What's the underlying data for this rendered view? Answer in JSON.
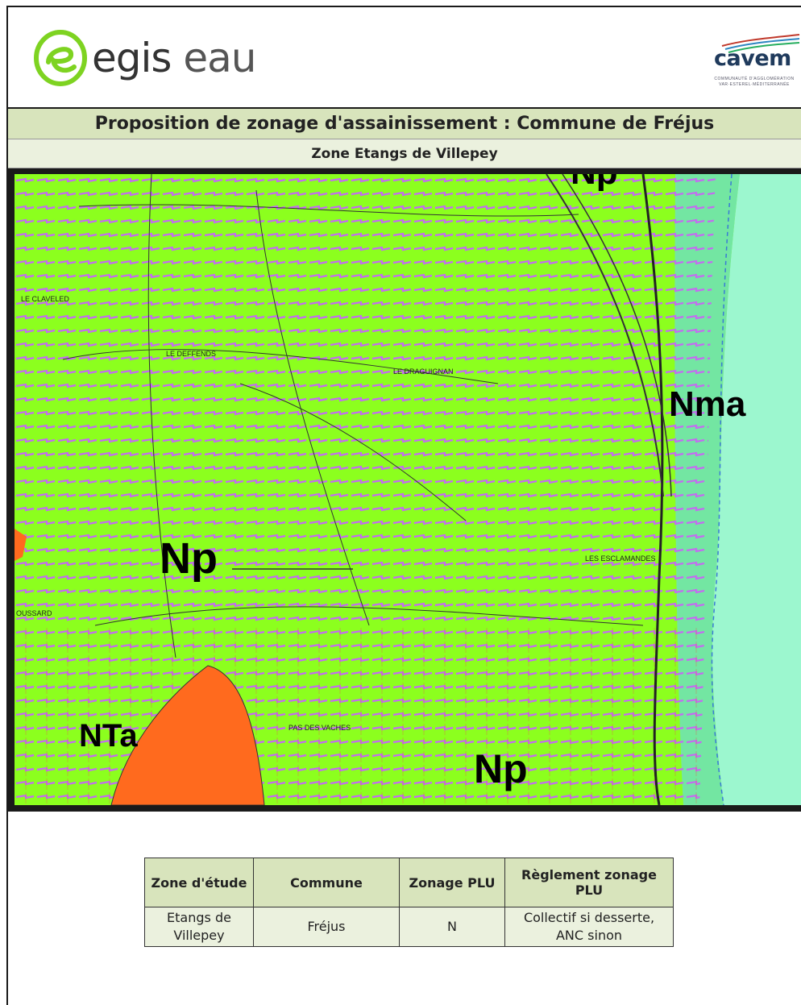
{
  "header": {
    "logo_left_text": "egis",
    "logo_left_text2": "eau",
    "logo_right_text": "cavem",
    "logo_right_subtitle": "COMMUNAUTÉ D'AGGLOMÉRATION VAR·ESTEREL·MÉDITERRANÉE"
  },
  "title": "Proposition de zonage d'assainissement : Commune de Fréjus",
  "subtitle": "Zone Etangs de Villepey",
  "map": {
    "labels": {
      "np_main": "Np",
      "np_bottom": "Np",
      "np_top": "Np",
      "nma": "Nma",
      "nta": "NTa",
      "le_claveled": "LE CLAVELED",
      "le_defends": "LE DEFFENDS",
      "le_draguignan": "LE DRAGUIGNAN",
      "les_esclamandes": "LES ESCLAMANDES",
      "pas_des_vaches": "PAS DES VACHES",
      "moussard": "OUSSARD"
    },
    "colors": {
      "zone_green": "#8cff1e",
      "sea": "#9cf7cf",
      "urban_orange": "#ff6a1e",
      "hatch_purple": "#c36cf0",
      "frame": "#1a1a1a"
    }
  },
  "table": {
    "headers": [
      "Zone d'étude",
      "Commune",
      "Zonage PLU",
      "Règlement zonage PLU"
    ],
    "rows": [
      [
        "Etangs de Villepey",
        "Fréjus",
        "N",
        "Collectif si desserte, ANC sinon"
      ]
    ]
  }
}
